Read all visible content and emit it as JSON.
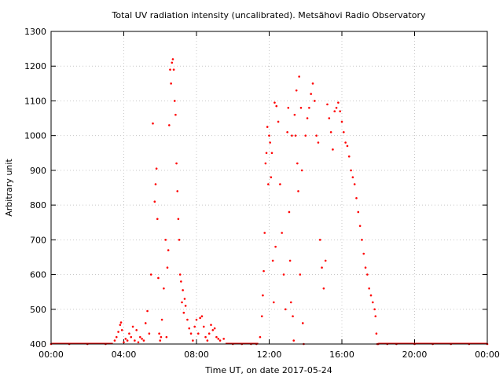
{
  "chart_data": {
    "type": "scatter",
    "title": "Total UV radiation intensity (uncalibrated). Metsähovi Radio Observatory",
    "xlabel": "Time UT, on date 2017-05-24",
    "ylabel": "Arbitrary unit",
    "xlim": [
      0,
      24
    ],
    "ylim": [
      400,
      1300
    ],
    "x_ticks": [
      0,
      4,
      8,
      12,
      16,
      20,
      24
    ],
    "x_tick_labels": [
      "00:00",
      "04:00",
      "08:00",
      "12:00",
      "16:00",
      "20:00",
      "00:00"
    ],
    "y_ticks": [
      400,
      500,
      600,
      700,
      800,
      900,
      1000,
      1100,
      1200,
      1300
    ],
    "y_tick_labels": [
      "400",
      "500",
      "600",
      "700",
      "800",
      "900",
      "1000",
      "1100",
      "1200",
      "1300"
    ],
    "grid": true,
    "marker_color": "#ff0000",
    "series": [
      {
        "x": [
          0.0,
          1.0,
          2.0,
          3.0,
          3.5,
          3.6,
          3.7,
          3.8,
          3.85,
          3.9,
          4.0,
          4.1,
          4.2,
          4.3,
          4.4,
          4.5,
          4.6,
          4.7,
          4.8,
          4.9,
          5.0,
          5.1,
          5.2,
          5.3,
          5.4,
          5.5,
          5.6,
          5.7,
          5.75,
          5.8,
          5.85,
          5.9,
          5.95,
          6.0,
          6.05,
          6.1,
          6.2,
          6.3,
          6.35,
          6.4,
          6.45,
          6.5,
          6.55,
          6.6,
          6.65,
          6.7,
          6.75,
          6.8,
          6.85,
          6.9,
          6.95,
          7.0,
          7.05,
          7.1,
          7.15,
          7.2,
          7.25,
          7.3,
          7.35,
          7.4,
          7.5,
          7.6,
          7.7,
          7.8,
          7.9,
          8.0,
          8.1,
          8.2,
          8.3,
          8.4,
          8.5,
          8.6,
          8.7,
          8.8,
          8.9,
          9.0,
          9.1,
          9.2,
          9.3,
          9.5,
          10.0,
          10.5,
          11.0,
          11.3,
          11.5,
          11.6,
          11.65,
          11.7,
          11.75,
          11.8,
          11.85,
          11.9,
          11.95,
          12.0,
          12.05,
          12.1,
          12.15,
          12.2,
          12.25,
          12.3,
          12.35,
          12.4,
          12.5,
          12.6,
          12.7,
          12.8,
          12.9,
          13.0,
          13.05,
          13.1,
          13.15,
          13.2,
          13.25,
          13.3,
          13.35,
          13.4,
          13.45,
          13.5,
          13.55,
          13.6,
          13.65,
          13.7,
          13.75,
          13.8,
          13.85,
          13.9,
          14.0,
          14.1,
          14.2,
          14.3,
          14.4,
          14.5,
          14.6,
          14.7,
          14.8,
          14.9,
          15.0,
          15.1,
          15.2,
          15.3,
          15.4,
          15.5,
          15.6,
          15.7,
          15.8,
          15.9,
          16.0,
          16.1,
          16.2,
          16.3,
          16.4,
          16.5,
          16.6,
          16.7,
          16.8,
          16.9,
          17.0,
          17.1,
          17.2,
          17.3,
          17.4,
          17.5,
          17.6,
          17.7,
          17.8,
          17.85,
          17.9,
          17.95,
          18.0,
          18.5,
          19.0,
          20.0,
          21.0,
          22.0,
          23.0,
          24.0
        ],
        "y": [
          400,
          400,
          400,
          400,
          410,
          420,
          435,
          455,
          462,
          440,
          405,
          415,
          410,
          430,
          420,
          450,
          410,
          440,
          405,
          420,
          415,
          410,
          460,
          495,
          430,
          600,
          1035,
          810,
          860,
          905,
          760,
          590,
          430,
          410,
          420,
          470,
          560,
          700,
          420,
          620,
          670,
          1030,
          1190,
          1150,
          1210,
          1220,
          1190,
          1100,
          1060,
          920,
          840,
          760,
          700,
          600,
          580,
          520,
          555,
          490,
          530,
          510,
          470,
          445,
          430,
          410,
          450,
          470,
          430,
          475,
          480,
          450,
          420,
          410,
          430,
          455,
          440,
          445,
          420,
          415,
          410,
          415,
          400,
          400,
          400,
          400,
          420,
          480,
          540,
          610,
          720,
          920,
          950,
          1025,
          860,
          1000,
          980,
          880,
          950,
          640,
          520,
          1095,
          680,
          1085,
          1040,
          860,
          720,
          600,
          500,
          1010,
          1080,
          780,
          640,
          520,
          1000,
          480,
          410,
          1060,
          1000,
          1130,
          920,
          840,
          1170,
          600,
          1080,
          900,
          460,
          400,
          1000,
          1050,
          1080,
          1120,
          1150,
          1100,
          1000,
          980,
          700,
          620,
          560,
          640,
          1090,
          1050,
          1010,
          960,
          1070,
          1080,
          1095,
          1070,
          1040,
          1010,
          980,
          970,
          940,
          900,
          880,
          860,
          820,
          780,
          740,
          700,
          660,
          620,
          600,
          560,
          540,
          520,
          500,
          480,
          430,
          400,
          400,
          400,
          400,
          400,
          400,
          400,
          400,
          400
        ]
      }
    ]
  }
}
